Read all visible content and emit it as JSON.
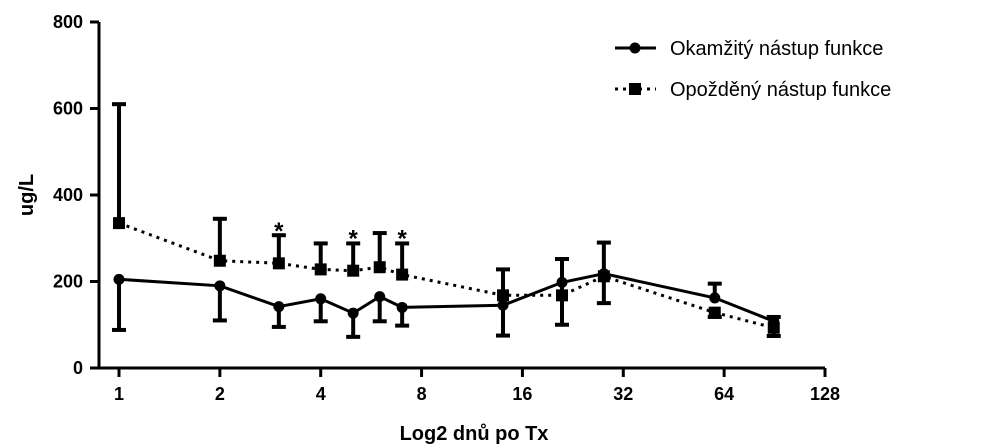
{
  "chart_data": {
    "type": "line",
    "title": "",
    "xlabel": "Log2 dnů po Tx",
    "ylabel": "ug/L",
    "x_scale": "log2",
    "xlim": [
      1,
      128
    ],
    "ylim": [
      0,
      800
    ],
    "x_ticks": [
      1,
      2,
      4,
      8,
      16,
      32,
      64,
      128
    ],
    "x_tick_labels": [
      "1",
      "2",
      "4",
      "8",
      "16",
      "32",
      "64",
      "128"
    ],
    "y_ticks": [
      0,
      200,
      400,
      600,
      800
    ],
    "y_tick_labels": [
      "0",
      "200",
      "400",
      "600",
      "800"
    ],
    "grid": false,
    "legend_position": "top-right",
    "series": [
      {
        "name": "Okamžitý nástup funkce",
        "marker": "circle",
        "line_style": "solid",
        "color": "#000000",
        "points": [
          {
            "x": 1,
            "y": 205,
            "err_lo": 88,
            "err_hi": null
          },
          {
            "x": 2,
            "y": 190,
            "err_lo": 110,
            "err_hi": null
          },
          {
            "x": 3,
            "y": 142,
            "err_lo": 95,
            "err_hi": null
          },
          {
            "x": 4,
            "y": 160,
            "err_lo": 108,
            "err_hi": null
          },
          {
            "x": 5,
            "y": 127,
            "err_lo": 72,
            "err_hi": null
          },
          {
            "x": 6,
            "y": 165,
            "err_lo": 108,
            "err_hi": null
          },
          {
            "x": 7,
            "y": 140,
            "err_lo": 98,
            "err_hi": null
          },
          {
            "x": 14,
            "y": 145,
            "err_lo": 75,
            "err_hi": 228
          },
          {
            "x": 21,
            "y": 198,
            "err_lo": 100,
            "err_hi": 252
          },
          {
            "x": 28,
            "y": 218,
            "err_lo": 150,
            "err_hi": 290
          },
          {
            "x": 60,
            "y": 162,
            "err_lo": null,
            "err_hi": 195
          },
          {
            "x": 90,
            "y": 108,
            "err_lo": null,
            "err_hi": 118
          }
        ]
      },
      {
        "name": "Opožděný nástup funkce",
        "marker": "square",
        "line_style": "dotted",
        "color": "#000000",
        "points": [
          {
            "x": 1,
            "y": 335,
            "err_lo": null,
            "err_hi": 610
          },
          {
            "x": 2,
            "y": 248,
            "err_lo": null,
            "err_hi": 345
          },
          {
            "x": 3,
            "y": 242,
            "err_lo": null,
            "err_hi": 307
          },
          {
            "x": 4,
            "y": 228,
            "err_lo": null,
            "err_hi": 288
          },
          {
            "x": 5,
            "y": 225,
            "err_lo": null,
            "err_hi": 288
          },
          {
            "x": 6,
            "y": 233,
            "err_lo": null,
            "err_hi": 312
          },
          {
            "x": 7,
            "y": 216,
            "err_lo": null,
            "err_hi": 288
          },
          {
            "x": 14,
            "y": 168,
            "err_lo": null,
            "err_hi": null
          },
          {
            "x": 21,
            "y": 168,
            "err_lo": null,
            "err_hi": null
          },
          {
            "x": 28,
            "y": 212,
            "err_lo": null,
            "err_hi": null
          },
          {
            "x": 60,
            "y": 128,
            "err_lo": 118,
            "err_hi": null
          },
          {
            "x": 90,
            "y": 93,
            "err_lo": 74,
            "err_hi": null
          }
        ]
      }
    ],
    "annotations": [
      {
        "text": "*",
        "x": 3,
        "y": 335
      },
      {
        "text": "*",
        "x": 5,
        "y": 318
      },
      {
        "text": "*",
        "x": 7,
        "y": 318
      }
    ]
  }
}
